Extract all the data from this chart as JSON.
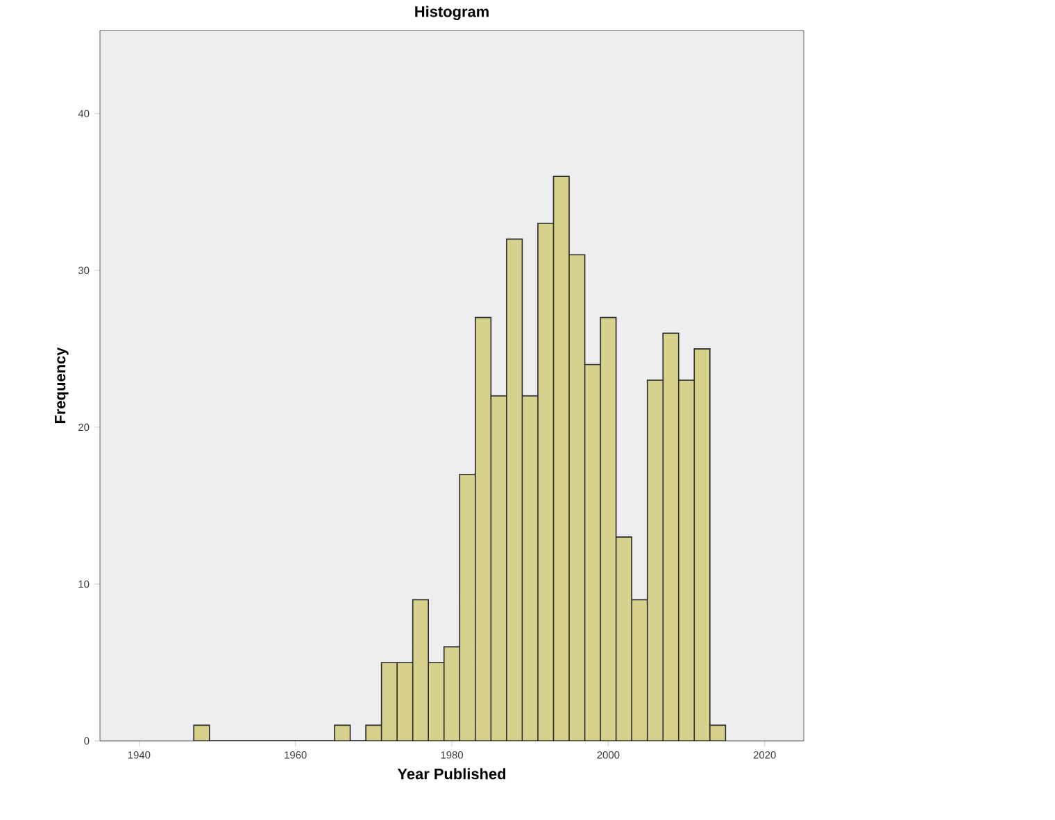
{
  "chart_data": {
    "type": "histogram",
    "title": "Histogram",
    "xlabel": "Year Published",
    "ylabel": "Frequency",
    "bins": [
      1947,
      1949,
      1951,
      1953,
      1955,
      1957,
      1959,
      1961,
      1963,
      1965,
      1967,
      1969,
      1971,
      1973,
      1975,
      1977,
      1979,
      1981,
      1983,
      1985,
      1987,
      1989,
      1991,
      1993,
      1995,
      1997,
      1999,
      2001,
      2003,
      2005,
      2007,
      2009,
      2011,
      2013,
      2015
    ],
    "values": [
      1,
      0,
      0,
      0,
      0,
      0,
      0,
      0,
      0,
      1,
      0,
      1,
      5,
      5,
      9,
      5,
      6,
      17,
      27,
      22,
      32,
      22,
      33,
      36,
      31,
      24,
      27,
      13,
      9,
      23,
      26,
      23,
      25,
      1
    ],
    "color": "#d6d28e",
    "xlim": [
      1935,
      2025
    ],
    "ylim": [
      0,
      45.3
    ],
    "xticks": [
      1940,
      1960,
      1980,
      2000,
      2020
    ],
    "yticks": [
      0,
      10,
      20,
      30,
      40
    ],
    "grid": false
  }
}
